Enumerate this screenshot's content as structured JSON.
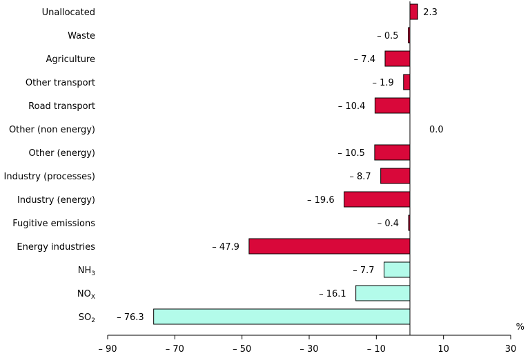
{
  "chart_data": {
    "type": "bar",
    "orientation": "horizontal",
    "title": "",
    "xlabel": "",
    "ylabel": "",
    "x_unit": "%",
    "xlim": [
      -90,
      30
    ],
    "x_ticks": [
      -90,
      -70,
      -50,
      -30,
      -10,
      10,
      30
    ],
    "x_tick_labels": [
      "– 90",
      "– 70",
      "– 50",
      "– 30",
      "– 10",
      "10",
      "30"
    ],
    "grid": false,
    "legend": "none",
    "colors": {
      "red": "#d9083a",
      "cyan": "#b3fbea",
      "outline": "#000000"
    },
    "bars": [
      {
        "label": "Unallocated",
        "value": 2.3,
        "value_label": "2.3",
        "color": "red"
      },
      {
        "label": "Waste",
        "value": -0.5,
        "value_label": "– 0.5",
        "color": "red"
      },
      {
        "label": "Agriculture",
        "value": -7.4,
        "value_label": "– 7.4",
        "color": "red"
      },
      {
        "label": "Other transport",
        "value": -1.9,
        "value_label": "– 1.9",
        "color": "red"
      },
      {
        "label": "Road transport",
        "value": -10.4,
        "value_label": "– 10.4",
        "color": "red"
      },
      {
        "label": "Other (non energy)",
        "value": 0.0,
        "value_label": "0.0",
        "color": "red"
      },
      {
        "label": "Other (energy)",
        "value": -10.5,
        "value_label": "– 10.5",
        "color": "red"
      },
      {
        "label": "Industry (processes)",
        "value": -8.7,
        "value_label": "– 8.7",
        "color": "red"
      },
      {
        "label": "Industry (energy)",
        "value": -19.6,
        "value_label": "– 19.6",
        "color": "red"
      },
      {
        "label": "Fugitive emissions",
        "value": -0.4,
        "value_label": "– 0.4",
        "color": "red"
      },
      {
        "label": "Energy industries",
        "value": -47.9,
        "value_label": "– 47.9",
        "color": "red"
      },
      {
        "label": "NH",
        "label_sub": "3",
        "value": -7.7,
        "value_label": "– 7.7",
        "color": "cyan"
      },
      {
        "label": "NO",
        "label_sub": "X",
        "value": -16.1,
        "value_label": "– 16.1",
        "color": "cyan"
      },
      {
        "label": "SO",
        "label_sub": "2",
        "value": -76.3,
        "value_label": "– 76.3",
        "color": "cyan"
      }
    ]
  }
}
